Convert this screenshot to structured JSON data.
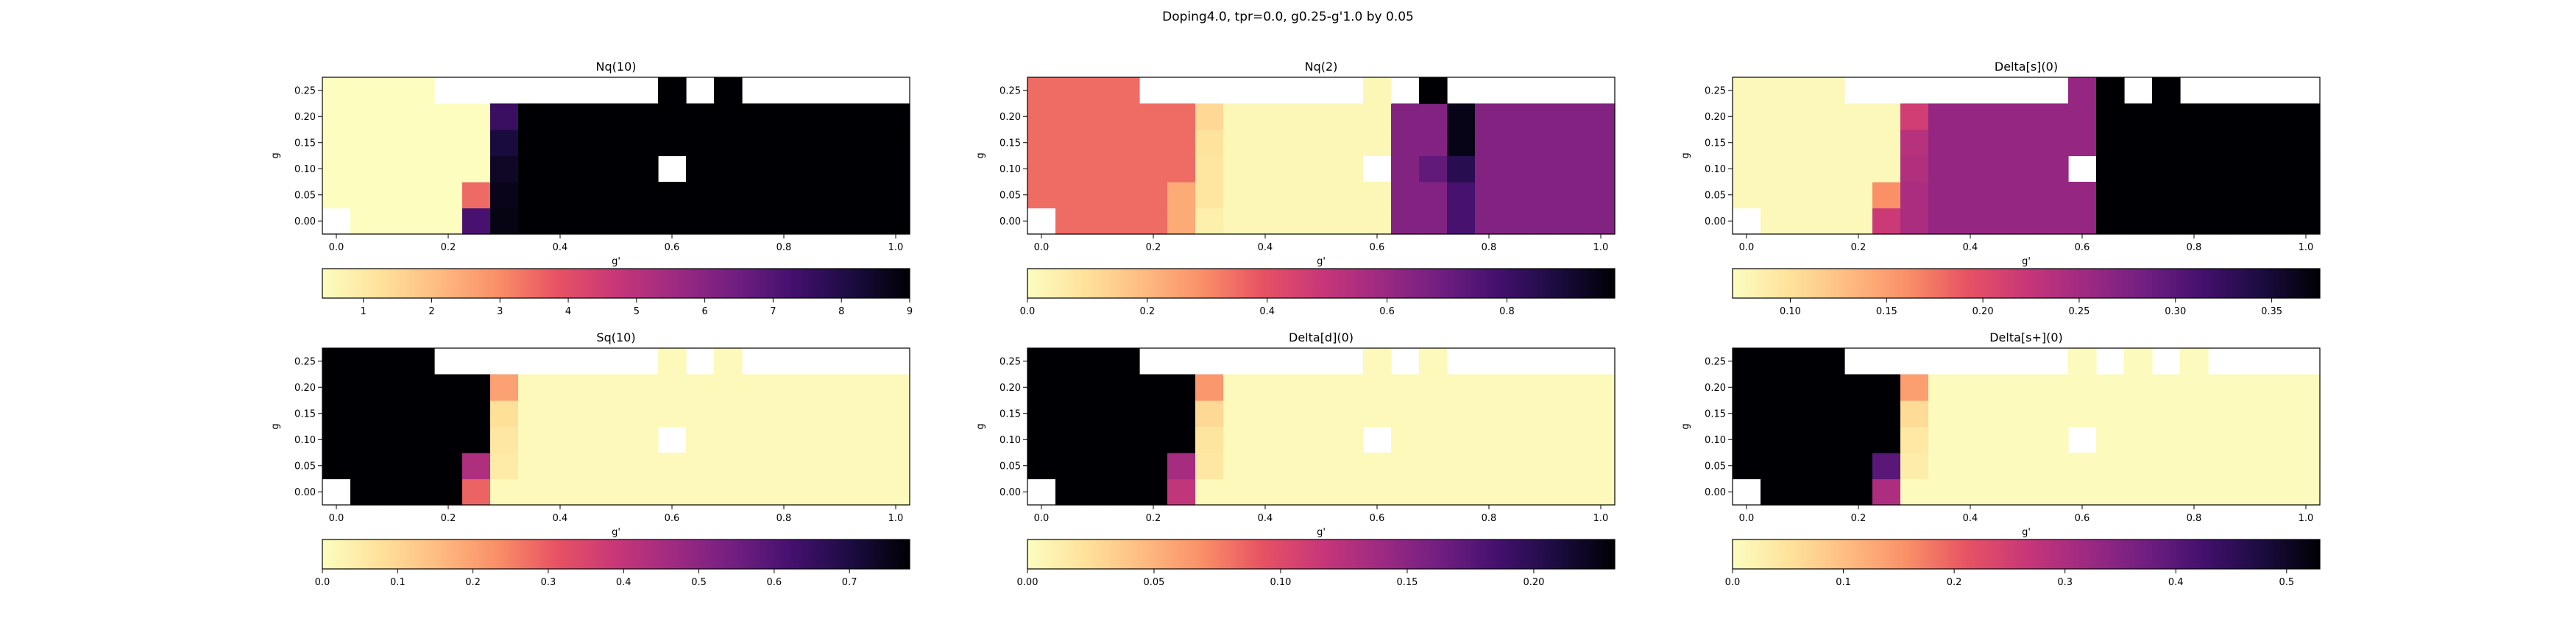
{
  "figure": {
    "title": "Doping4.0, tpr=0.0, g0.25-g'1.0 by 0.05"
  },
  "colormap": "magma_r",
  "chart_data": [
    {
      "type": "heatmap",
      "title": "Nq(10)",
      "xlabel": "g'",
      "ylabel": "g",
      "x_ticks": [
        "0.0",
        "0.2",
        "0.4",
        "0.6",
        "0.8",
        "1.0"
      ],
      "y_ticks": [
        "0.00",
        "0.05",
        "0.10",
        "0.15",
        "0.20",
        "0.25"
      ],
      "colorbar": {
        "min": 0.4,
        "max": 9.0,
        "ticks": [
          1,
          2,
          3,
          4,
          5,
          6,
          7,
          8,
          9
        ],
        "tick_labels": [
          "1",
          "2",
          "3",
          "4",
          "5",
          "6",
          "7",
          "8",
          "9"
        ]
      },
      "grid": [
        [
          null,
          0.4,
          0.4,
          0.4,
          0.4,
          7.2,
          8.8,
          9,
          9,
          9,
          9,
          9,
          9,
          9,
          9,
          9,
          9,
          9,
          9,
          9,
          9
        ],
        [
          0.4,
          0.4,
          0.4,
          0.4,
          0.4,
          3.5,
          8.7,
          9,
          9,
          9,
          9,
          9,
          9,
          9,
          9,
          9,
          9,
          9,
          9,
          9,
          9
        ],
        [
          0.4,
          0.4,
          0.4,
          0.4,
          0.4,
          0.4,
          8.5,
          9,
          9,
          9,
          9,
          9,
          null,
          9,
          9,
          9,
          9,
          9,
          9,
          9,
          9
        ],
        [
          0.4,
          0.4,
          0.4,
          0.4,
          0.4,
          0.4,
          8.2,
          9,
          9,
          9,
          9,
          9,
          9,
          9,
          9,
          9,
          9,
          9,
          9,
          9,
          9
        ],
        [
          0.4,
          0.4,
          0.4,
          0.4,
          0.4,
          0.4,
          7.5,
          9,
          9,
          9,
          9,
          9,
          9,
          9,
          9,
          9,
          9,
          9,
          9,
          9,
          9
        ],
        [
          0.4,
          0.4,
          0.4,
          0.4,
          null,
          null,
          null,
          null,
          null,
          null,
          null,
          null,
          9,
          null,
          9,
          null,
          null,
          null,
          null,
          null,
          null
        ]
      ]
    },
    {
      "type": "heatmap",
      "title": "Nq(2)",
      "xlabel": "g'",
      "ylabel": "g",
      "x_ticks": [
        "0.0",
        "0.2",
        "0.4",
        "0.6",
        "0.8",
        "1.0"
      ],
      "y_ticks": [
        "0.00",
        "0.05",
        "0.10",
        "0.15",
        "0.20",
        "0.25"
      ],
      "colorbar": {
        "min": 0.0,
        "max": 0.98,
        "ticks": [
          0.0,
          0.2,
          0.4,
          0.6,
          0.8
        ],
        "tick_labels": [
          "0.0",
          "0.2",
          "0.4",
          "0.6",
          "0.8"
        ]
      },
      "grid": [
        [
          null,
          0.35,
          0.35,
          0.35,
          0.35,
          0.23,
          0.05,
          0.02,
          0.02,
          0.02,
          0.02,
          0.02,
          0.02,
          0.65,
          0.65,
          0.78,
          0.65,
          0.65,
          0.65,
          0.65,
          0.65
        ],
        [
          0.35,
          0.35,
          0.35,
          0.35,
          0.35,
          0.23,
          0.08,
          0.02,
          0.02,
          0.02,
          0.02,
          0.02,
          0.02,
          0.65,
          0.65,
          0.78,
          0.65,
          0.65,
          0.65,
          0.65,
          0.65
        ],
        [
          0.35,
          0.35,
          0.35,
          0.35,
          0.35,
          0.35,
          0.08,
          0.02,
          0.02,
          0.02,
          0.02,
          0.02,
          null,
          0.65,
          0.72,
          0.85,
          0.65,
          0.65,
          0.65,
          0.65,
          0.65
        ],
        [
          0.35,
          0.35,
          0.35,
          0.35,
          0.35,
          0.35,
          0.09,
          0.02,
          0.02,
          0.02,
          0.02,
          0.02,
          0.02,
          0.65,
          0.65,
          0.95,
          0.65,
          0.65,
          0.65,
          0.65,
          0.65
        ],
        [
          0.35,
          0.35,
          0.35,
          0.35,
          0.35,
          0.35,
          0.12,
          0.02,
          0.02,
          0.02,
          0.02,
          0.02,
          0.02,
          0.65,
          0.65,
          0.95,
          0.65,
          0.65,
          0.65,
          0.65,
          0.65
        ],
        [
          0.35,
          0.35,
          0.35,
          0.35,
          null,
          null,
          null,
          null,
          null,
          null,
          null,
          null,
          0.02,
          null,
          0.98,
          null,
          null,
          null,
          null,
          null,
          null
        ]
      ]
    },
    {
      "type": "heatmap",
      "title": "Delta[s](0)",
      "xlabel": "g'",
      "ylabel": "g",
      "x_ticks": [
        "0.0",
        "0.2",
        "0.4",
        "0.6",
        "0.8",
        "1.0"
      ],
      "y_ticks": [
        "0.00",
        "0.05",
        "0.10",
        "0.15",
        "0.20",
        "0.25"
      ],
      "colorbar": {
        "min": 0.07,
        "max": 0.375,
        "ticks": [
          0.1,
          0.15,
          0.2,
          0.25,
          0.3,
          0.35
        ],
        "tick_labels": [
          "0.10",
          "0.15",
          "0.20",
          "0.25",
          "0.30",
          "0.35"
        ]
      },
      "grid": [
        [
          null,
          0.075,
          0.075,
          0.075,
          0.075,
          0.22,
          0.245,
          0.26,
          0.26,
          0.26,
          0.26,
          0.26,
          0.26,
          0.375,
          0.375,
          0.375,
          0.375,
          0.375,
          0.375,
          0.375,
          0.375
        ],
        [
          0.075,
          0.075,
          0.075,
          0.075,
          0.075,
          0.16,
          0.245,
          0.26,
          0.26,
          0.26,
          0.26,
          0.26,
          0.26,
          0.375,
          0.375,
          0.375,
          0.375,
          0.375,
          0.375,
          0.375,
          0.375
        ],
        [
          0.075,
          0.075,
          0.075,
          0.075,
          0.075,
          0.075,
          0.24,
          0.26,
          0.26,
          0.26,
          0.26,
          0.26,
          null,
          0.375,
          0.375,
          0.375,
          0.375,
          0.375,
          0.375,
          0.375,
          0.375
        ],
        [
          0.075,
          0.075,
          0.075,
          0.075,
          0.075,
          0.075,
          0.235,
          0.26,
          0.26,
          0.26,
          0.26,
          0.26,
          0.26,
          0.375,
          0.375,
          0.375,
          0.375,
          0.375,
          0.375,
          0.375,
          0.375
        ],
        [
          0.075,
          0.075,
          0.075,
          0.075,
          0.075,
          0.075,
          0.215,
          0.26,
          0.26,
          0.26,
          0.26,
          0.26,
          0.26,
          0.375,
          0.375,
          0.375,
          0.375,
          0.375,
          0.375,
          0.375,
          0.375
        ],
        [
          0.075,
          0.075,
          0.075,
          0.075,
          null,
          null,
          null,
          null,
          null,
          null,
          null,
          null,
          0.26,
          0.375,
          null,
          0.375,
          null,
          null,
          null,
          null,
          null
        ]
      ]
    },
    {
      "type": "heatmap",
      "title": "Sq(10)",
      "xlabel": "g'",
      "ylabel": "g",
      "x_ticks": [
        "0.0",
        "0.2",
        "0.4",
        "0.6",
        "0.8",
        "1.0"
      ],
      "y_ticks": [
        "0.00",
        "0.05",
        "0.10",
        "0.15",
        "0.20",
        "0.25"
      ],
      "colorbar": {
        "min": 0.0,
        "max": 0.78,
        "ticks": [
          0.0,
          0.1,
          0.2,
          0.3,
          0.4,
          0.5,
          0.6,
          0.7
        ],
        "tick_labels": [
          "0.0",
          "0.1",
          "0.2",
          "0.3",
          "0.4",
          "0.5",
          "0.6",
          "0.7"
        ]
      },
      "grid": [
        [
          null,
          0.78,
          0.78,
          0.78,
          0.78,
          0.29,
          0.01,
          0.01,
          0.01,
          0.01,
          0.01,
          0.01,
          0.01,
          0.01,
          0.01,
          0.01,
          0.01,
          0.01,
          0.01,
          0.01,
          0.01
        ],
        [
          0.78,
          0.78,
          0.78,
          0.78,
          0.78,
          0.44,
          0.05,
          0.01,
          0.01,
          0.01,
          0.01,
          0.01,
          0.01,
          0.01,
          0.01,
          0.01,
          0.01,
          0.01,
          0.01,
          0.01,
          0.01
        ],
        [
          0.78,
          0.78,
          0.78,
          0.78,
          0.78,
          0.78,
          0.06,
          0.01,
          0.01,
          0.01,
          0.01,
          0.01,
          null,
          0.01,
          0.01,
          0.01,
          0.01,
          0.01,
          0.01,
          0.01,
          0.01
        ],
        [
          0.78,
          0.78,
          0.78,
          0.78,
          0.78,
          0.78,
          0.08,
          0.01,
          0.01,
          0.01,
          0.01,
          0.01,
          0.01,
          0.01,
          0.01,
          0.01,
          0.01,
          0.01,
          0.01,
          0.01,
          0.01
        ],
        [
          0.78,
          0.78,
          0.78,
          0.78,
          0.78,
          0.78,
          0.2,
          0.01,
          0.01,
          0.01,
          0.01,
          0.01,
          0.01,
          0.01,
          0.01,
          0.01,
          0.01,
          0.01,
          0.01,
          0.01,
          0.01
        ],
        [
          0.78,
          0.78,
          0.78,
          0.78,
          null,
          null,
          null,
          null,
          null,
          null,
          null,
          null,
          0.01,
          null,
          0.01,
          null,
          null,
          null,
          null,
          null,
          null
        ]
      ]
    },
    {
      "type": "heatmap",
      "title": "Delta[d](0)",
      "xlabel": "g'",
      "ylabel": "g",
      "x_ticks": [
        "0.0",
        "0.2",
        "0.4",
        "0.6",
        "0.8",
        "1.0"
      ],
      "y_ticks": [
        "0.00",
        "0.05",
        "0.10",
        "0.15",
        "0.20",
        "0.25"
      ],
      "colorbar": {
        "min": 0.0,
        "max": 0.232,
        "ticks": [
          0.0,
          0.05,
          0.1,
          0.15,
          0.2
        ],
        "tick_labels": [
          "0.00",
          "0.05",
          "0.10",
          "0.15",
          "0.20"
        ]
      },
      "grid": [
        [
          null,
          0.232,
          0.232,
          0.232,
          0.232,
          0.12,
          0.003,
          0.003,
          0.003,
          0.003,
          0.003,
          0.003,
          0.003,
          0.003,
          0.003,
          0.003,
          0.003,
          0.003,
          0.003,
          0.003,
          0.003
        ],
        [
          0.232,
          0.232,
          0.232,
          0.232,
          0.232,
          0.135,
          0.018,
          0.003,
          0.003,
          0.003,
          0.003,
          0.003,
          0.003,
          0.003,
          0.003,
          0.003,
          0.003,
          0.003,
          0.003,
          0.003,
          0.003
        ],
        [
          0.232,
          0.232,
          0.232,
          0.232,
          0.232,
          0.232,
          0.02,
          0.003,
          0.003,
          0.003,
          0.003,
          0.003,
          null,
          0.003,
          0.003,
          0.003,
          0.003,
          0.003,
          0.003,
          0.003,
          0.003
        ],
        [
          0.232,
          0.232,
          0.232,
          0.232,
          0.232,
          0.232,
          0.028,
          0.003,
          0.003,
          0.003,
          0.003,
          0.003,
          0.003,
          0.003,
          0.003,
          0.003,
          0.003,
          0.003,
          0.003,
          0.003,
          0.003
        ],
        [
          0.232,
          0.232,
          0.232,
          0.232,
          0.232,
          0.232,
          0.065,
          0.003,
          0.003,
          0.003,
          0.003,
          0.003,
          0.003,
          0.003,
          0.003,
          0.003,
          0.003,
          0.003,
          0.003,
          0.003,
          0.003
        ],
        [
          0.232,
          0.232,
          0.232,
          0.232,
          null,
          null,
          null,
          null,
          null,
          null,
          null,
          null,
          0.003,
          null,
          0.003,
          null,
          null,
          null,
          null,
          null,
          null
        ]
      ]
    },
    {
      "type": "heatmap",
      "title": "Delta[s+](0)",
      "xlabel": "g'",
      "ylabel": "g",
      "x_ticks": [
        "0.0",
        "0.2",
        "0.4",
        "0.6",
        "0.8",
        "1.0"
      ],
      "y_ticks": [
        "0.00",
        "0.05",
        "0.10",
        "0.15",
        "0.20",
        "0.25"
      ],
      "colorbar": {
        "min": 0.0,
        "max": 0.53,
        "ticks": [
          0.0,
          0.1,
          0.2,
          0.3,
          0.4,
          0.5
        ],
        "tick_labels": [
          "0.0",
          "0.1",
          "0.2",
          "0.3",
          "0.4",
          "0.5"
        ]
      },
      "grid": [
        [
          null,
          0.53,
          0.53,
          0.53,
          0.53,
          0.3,
          0.005,
          0.005,
          0.005,
          0.005,
          0.005,
          0.005,
          0.005,
          0.005,
          0.005,
          0.005,
          0.005,
          0.005,
          0.005,
          0.005,
          0.005
        ],
        [
          0.53,
          0.53,
          0.53,
          0.53,
          0.53,
          0.4,
          0.03,
          0.005,
          0.005,
          0.005,
          0.005,
          0.005,
          0.005,
          0.005,
          0.005,
          0.005,
          0.005,
          0.005,
          0.005,
          0.005,
          0.005
        ],
        [
          0.53,
          0.53,
          0.53,
          0.53,
          0.53,
          0.53,
          0.04,
          0.005,
          0.005,
          0.005,
          0.005,
          0.005,
          null,
          0.005,
          0.005,
          0.005,
          0.005,
          0.005,
          0.005,
          0.005,
          0.005
        ],
        [
          0.53,
          0.53,
          0.53,
          0.53,
          0.53,
          0.53,
          0.06,
          0.005,
          0.005,
          0.005,
          0.005,
          0.005,
          0.005,
          0.005,
          0.005,
          0.005,
          0.005,
          0.005,
          0.005,
          0.005,
          0.005
        ],
        [
          0.53,
          0.53,
          0.53,
          0.53,
          0.53,
          0.53,
          0.14,
          0.005,
          0.005,
          0.005,
          0.005,
          0.005,
          0.005,
          0.005,
          0.005,
          0.005,
          0.005,
          0.005,
          0.005,
          0.005,
          0.005
        ],
        [
          0.53,
          0.53,
          0.53,
          0.53,
          null,
          null,
          null,
          null,
          null,
          null,
          null,
          null,
          0.005,
          null,
          0.005,
          null,
          0.005,
          null,
          null,
          null,
          null
        ]
      ]
    }
  ]
}
